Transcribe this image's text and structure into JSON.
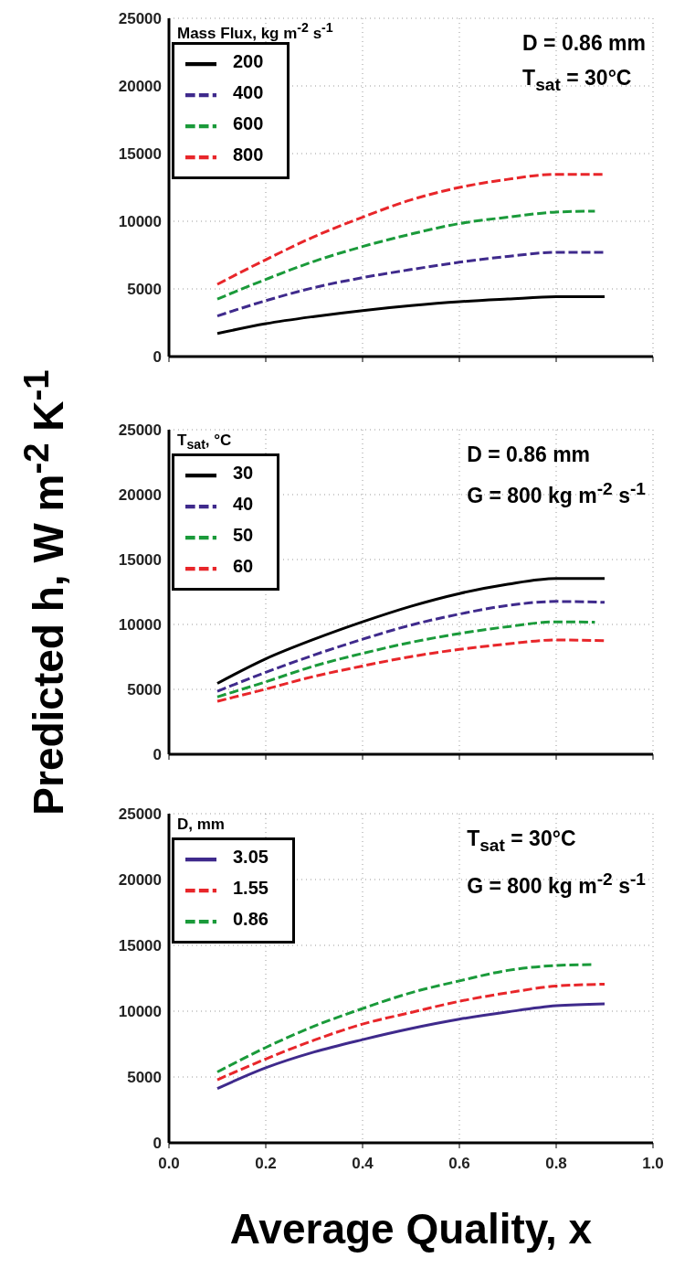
{
  "chart_data": [
    {
      "type": "line",
      "legend_title": "Mass Flux, kg m$^{-2}$ s$^{-1}$",
      "annotations": [
        "D = 0.86 mm",
        "T$_{sat}$ = 30°C"
      ],
      "xlim": [
        0,
        1
      ],
      "xticks": [
        {
          "value": 0,
          "label": null
        },
        {
          "value": 0.2,
          "label": null
        },
        {
          "value": 0.4,
          "label": null
        },
        {
          "value": 0.6,
          "label": null
        },
        {
          "value": 0.8,
          "label": null
        },
        {
          "value": 1,
          "label": null
        }
      ],
      "ylim": [
        0,
        25000
      ],
      "yticks": [
        0,
        5000,
        10000,
        15000,
        20000,
        25000
      ],
      "tick_labels": "y",
      "grid": true,
      "legend": "top left",
      "marker": "none",
      "series": [
        {
          "name": "200",
          "color": "#000000",
          "line_style": "solid",
          "x": [
            0.1,
            0.2,
            0.3,
            0.4,
            0.5,
            0.6,
            0.7,
            0.8,
            0.9
          ],
          "values": [
            1700,
            2430,
            2960,
            3400,
            3760,
            4050,
            4250,
            4420,
            4420
          ]
        },
        {
          "name": "400",
          "color": "#3f2a8c",
          "line_style": "dashed",
          "x": [
            0.1,
            0.2,
            0.3,
            0.4,
            0.5,
            0.6,
            0.7,
            0.8,
            0.9
          ],
          "values": [
            3000,
            4130,
            5100,
            5830,
            6430,
            6970,
            7400,
            7700,
            7700
          ]
        },
        {
          "name": "600",
          "color": "#1a9a3a",
          "line_style": "dashed",
          "x": [
            0.1,
            0.2,
            0.3,
            0.4,
            0.5,
            0.6,
            0.7,
            0.8,
            0.88
          ],
          "values": [
            4250,
            5700,
            7040,
            8130,
            9050,
            9830,
            10300,
            10680,
            10750
          ]
        },
        {
          "name": "800",
          "color": "#e8262a",
          "line_style": "dashed",
          "x": [
            0.1,
            0.2,
            0.3,
            0.4,
            0.5,
            0.6,
            0.7,
            0.8,
            0.9
          ],
          "values": [
            5340,
            7160,
            8860,
            10300,
            11580,
            12500,
            13100,
            13470,
            13470
          ]
        }
      ]
    },
    {
      "type": "line",
      "legend_title": "T$_{sat}$, °C",
      "ylabel": "Predicted h, W m$^{-2}$ K$^{-1}$",
      "annotations": [
        "D = 0.86 mm",
        "G = 800 kg m$^{-2}$ s$^{-1}$"
      ],
      "xlim": [
        0,
        1
      ],
      "xticks": [
        {
          "value": 0,
          "label": null
        },
        {
          "value": 0.2,
          "label": null
        },
        {
          "value": 0.4,
          "label": null
        },
        {
          "value": 0.6,
          "label": null
        },
        {
          "value": 0.8,
          "label": null
        },
        {
          "value": 1,
          "label": null
        }
      ],
      "ylim": [
        0,
        25000
      ],
      "yticks": [
        0,
        5000,
        10000,
        15000,
        20000,
        25000
      ],
      "tick_labels": "y",
      "grid": true,
      "legend": "top left",
      "marker": "none",
      "series": [
        {
          "name": "30",
          "color": "#000000",
          "line_style": "solid",
          "x": [
            0.1,
            0.2,
            0.3,
            0.4,
            0.5,
            0.6,
            0.7,
            0.8,
            0.9
          ],
          "values": [
            5460,
            7350,
            8860,
            10200,
            11400,
            12380,
            13100,
            13540,
            13540
          ]
        },
        {
          "name": "40",
          "color": "#3f2a8c",
          "line_style": "dashed",
          "x": [
            0.1,
            0.2,
            0.3,
            0.4,
            0.5,
            0.6,
            0.7,
            0.8,
            0.9
          ],
          "values": [
            4850,
            6310,
            7650,
            8860,
            9950,
            10800,
            11460,
            11770,
            11700
          ]
        },
        {
          "name": "50",
          "color": "#1a9a3a",
          "line_style": "dashed",
          "x": [
            0.1,
            0.2,
            0.3,
            0.4,
            0.5,
            0.6,
            0.7,
            0.8,
            0.88
          ],
          "values": [
            4420,
            5580,
            6800,
            7770,
            8620,
            9300,
            9830,
            10200,
            10170
          ]
        },
        {
          "name": "60",
          "color": "#e8262a",
          "line_style": "dashed",
          "x": [
            0.1,
            0.2,
            0.3,
            0.4,
            0.5,
            0.6,
            0.7,
            0.8,
            0.9
          ],
          "values": [
            4080,
            5020,
            6000,
            6800,
            7520,
            8080,
            8500,
            8810,
            8740
          ]
        }
      ]
    },
    {
      "type": "line",
      "legend_title": "D, mm",
      "xlabel": "Average Quality, x",
      "annotations": [
        "T$_{sat}$ = 30°C",
        "G = 800 kg m$^{-2}$ s$^{-1}$"
      ],
      "xlim": [
        0,
        1
      ],
      "xticks": [
        {
          "value": 0,
          "label": "0.0"
        },
        {
          "value": 0.2,
          "label": "0.2"
        },
        {
          "value": 0.4,
          "label": "0.4"
        },
        {
          "value": 0.6,
          "label": "0.6"
        },
        {
          "value": 0.8,
          "label": "0.8"
        },
        {
          "value": 1,
          "label": "1.0"
        }
      ],
      "ylim": [
        0,
        25000
      ],
      "yticks": [
        0,
        5000,
        10000,
        15000,
        20000,
        25000
      ],
      "grid": true,
      "legend": "top left",
      "marker": "none",
      "series": [
        {
          "name": "3.05",
          "color": "#3f2a8c",
          "line_style": "solid",
          "x": [
            0.1,
            0.2,
            0.3,
            0.4,
            0.5,
            0.6,
            0.7,
            0.8,
            0.9
          ],
          "values": [
            4120,
            5700,
            6900,
            7840,
            8680,
            9390,
            9950,
            10410,
            10560
          ]
        },
        {
          "name": "1.55",
          "color": "#e8262a",
          "line_style": "dashed",
          "x": [
            0.1,
            0.2,
            0.3,
            0.4,
            0.5,
            0.6,
            0.7,
            0.8,
            0.9
          ],
          "values": [
            4790,
            6370,
            7800,
            9020,
            9900,
            10750,
            11400,
            11910,
            12050
          ]
        },
        {
          "name": "0.86",
          "color": "#1a9a3a",
          "line_style": "dashed",
          "x": [
            0.1,
            0.2,
            0.3,
            0.4,
            0.5,
            0.6,
            0.7,
            0.8,
            0.88
          ],
          "values": [
            5380,
            7240,
            8860,
            10200,
            11400,
            12300,
            13100,
            13470,
            13540
          ]
        }
      ]
    }
  ]
}
